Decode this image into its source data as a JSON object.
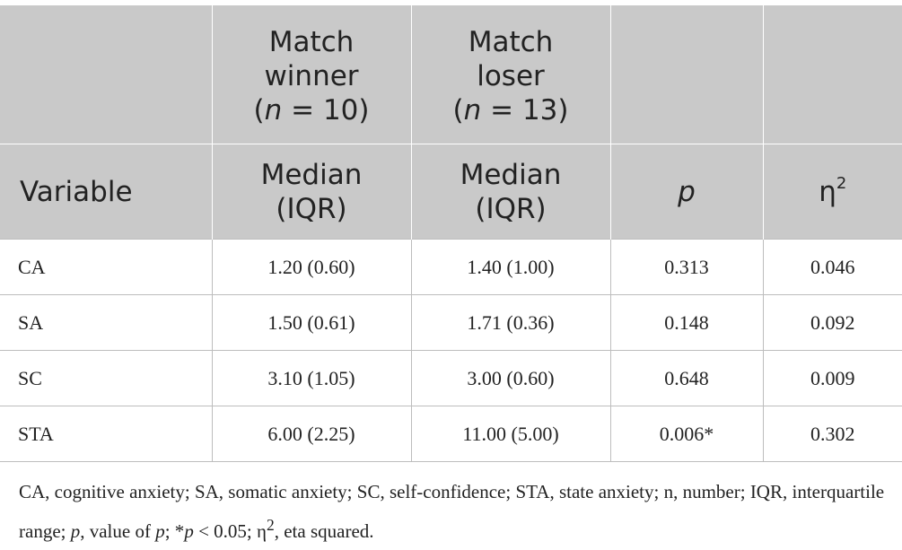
{
  "table": {
    "header_row1": {
      "winner": [
        "Match",
        "winner"
      ],
      "winner_n_open": "(",
      "winner_n_var": "n",
      "winner_n_rest": " = 10)",
      "loser": [
        "Match",
        "loser"
      ],
      "loser_n_open": "(",
      "loser_n_var": "n",
      "loser_n_rest": " = 13)"
    },
    "header_row2": {
      "variable": "Variable",
      "median1": [
        "Median",
        "(IQR)"
      ],
      "median2": [
        "Median",
        "(IQR)"
      ],
      "p": "p",
      "eta": "η",
      "eta_sup": "2"
    },
    "rows": [
      {
        "variable": "CA",
        "winner": "1.20 (0.60)",
        "loser": "1.40 (1.00)",
        "p": "0.313",
        "eta": "0.046"
      },
      {
        "variable": "SA",
        "winner": "1.50 (0.61)",
        "loser": "1.71 (0.36)",
        "p": "0.148",
        "eta": "0.092"
      },
      {
        "variable": "SC",
        "winner": "3.10 (1.05)",
        "loser": "3.00 (0.60)",
        "p": "0.648",
        "eta": "0.009"
      },
      {
        "variable": "STA",
        "winner": "6.00 (2.25)",
        "loser": "11.00 (5.00)",
        "p": "0.006*",
        "eta": "0.302"
      }
    ]
  },
  "footnote": {
    "part1": "CA, cognitive anxiety; SA, somatic anxiety; SC, self-confidence; STA, state anxiety; n, number; IQR, interquartile range; ",
    "p_var": "p",
    "part2": ", value of ",
    "p_var2": "p",
    "part3": "; *",
    "p_var3": "p",
    "part4": " < 0.05; η",
    "sup": "2",
    "part5": ", eta squared."
  },
  "colors": {
    "header_bg": "#c9c9c9",
    "text": "#222222",
    "border": "#bdbdbd"
  }
}
